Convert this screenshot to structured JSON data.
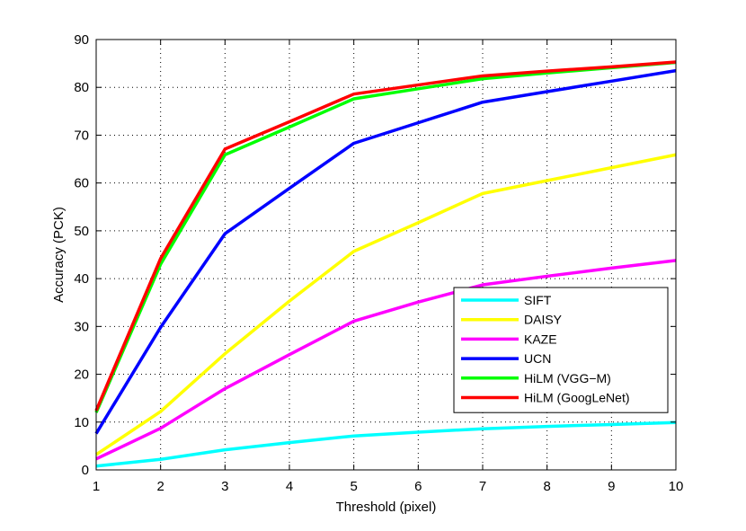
{
  "chart_data": {
    "type": "line",
    "title": "",
    "xlabel": "Threshold (pixel)",
    "ylabel": "Accuracy (PCK)",
    "x": [
      1,
      2,
      3,
      4,
      5,
      6,
      7,
      8,
      9,
      10
    ],
    "xlim": [
      1,
      10
    ],
    "ylim": [
      0,
      90
    ],
    "xticks": [
      "1",
      "2",
      "3",
      "4",
      "5",
      "6",
      "7",
      "8",
      "9",
      "10"
    ],
    "yticks": [
      "0",
      "10",
      "20",
      "30",
      "40",
      "50",
      "60",
      "70",
      "80",
      "90"
    ],
    "grid": true,
    "legend_position": "lower-right",
    "series": [
      {
        "name": "SIFT",
        "color": "#00ffff",
        "values": [
          0.8,
          2.2,
          4.2,
          5.7,
          7.1,
          7.9,
          8.6,
          9.1,
          9.5,
          9.9
        ]
      },
      {
        "name": "DAISY",
        "color": "#ffff00",
        "values": [
          3.2,
          12.2,
          24.3,
          35.3,
          45.7,
          51.7,
          57.8,
          60.5,
          63.2,
          65.9
        ]
      },
      {
        "name": "KAZE",
        "color": "#ff00ff",
        "values": [
          2.3,
          8.7,
          17.0,
          24.1,
          31.1,
          35.1,
          38.7,
          40.5,
          42.2,
          43.8
        ]
      },
      {
        "name": "UCN",
        "color": "#0000ff",
        "values": [
          7.6,
          29.8,
          49.4,
          58.9,
          68.3,
          72.6,
          76.9,
          79.1,
          81.3,
          83.5
        ]
      },
      {
        "name": "HiLM (VGG−M)",
        "color": "#00ff00",
        "values": [
          12.0,
          43.0,
          65.9,
          71.7,
          77.6,
          79.7,
          81.8,
          83.0,
          84.1,
          85.2
        ]
      },
      {
        "name": "HiLM (GoogLeNet)",
        "color": "#ff0000",
        "values": [
          12.4,
          44.2,
          67.1,
          72.8,
          78.6,
          80.5,
          82.4,
          83.4,
          84.3,
          85.3
        ]
      }
    ]
  }
}
